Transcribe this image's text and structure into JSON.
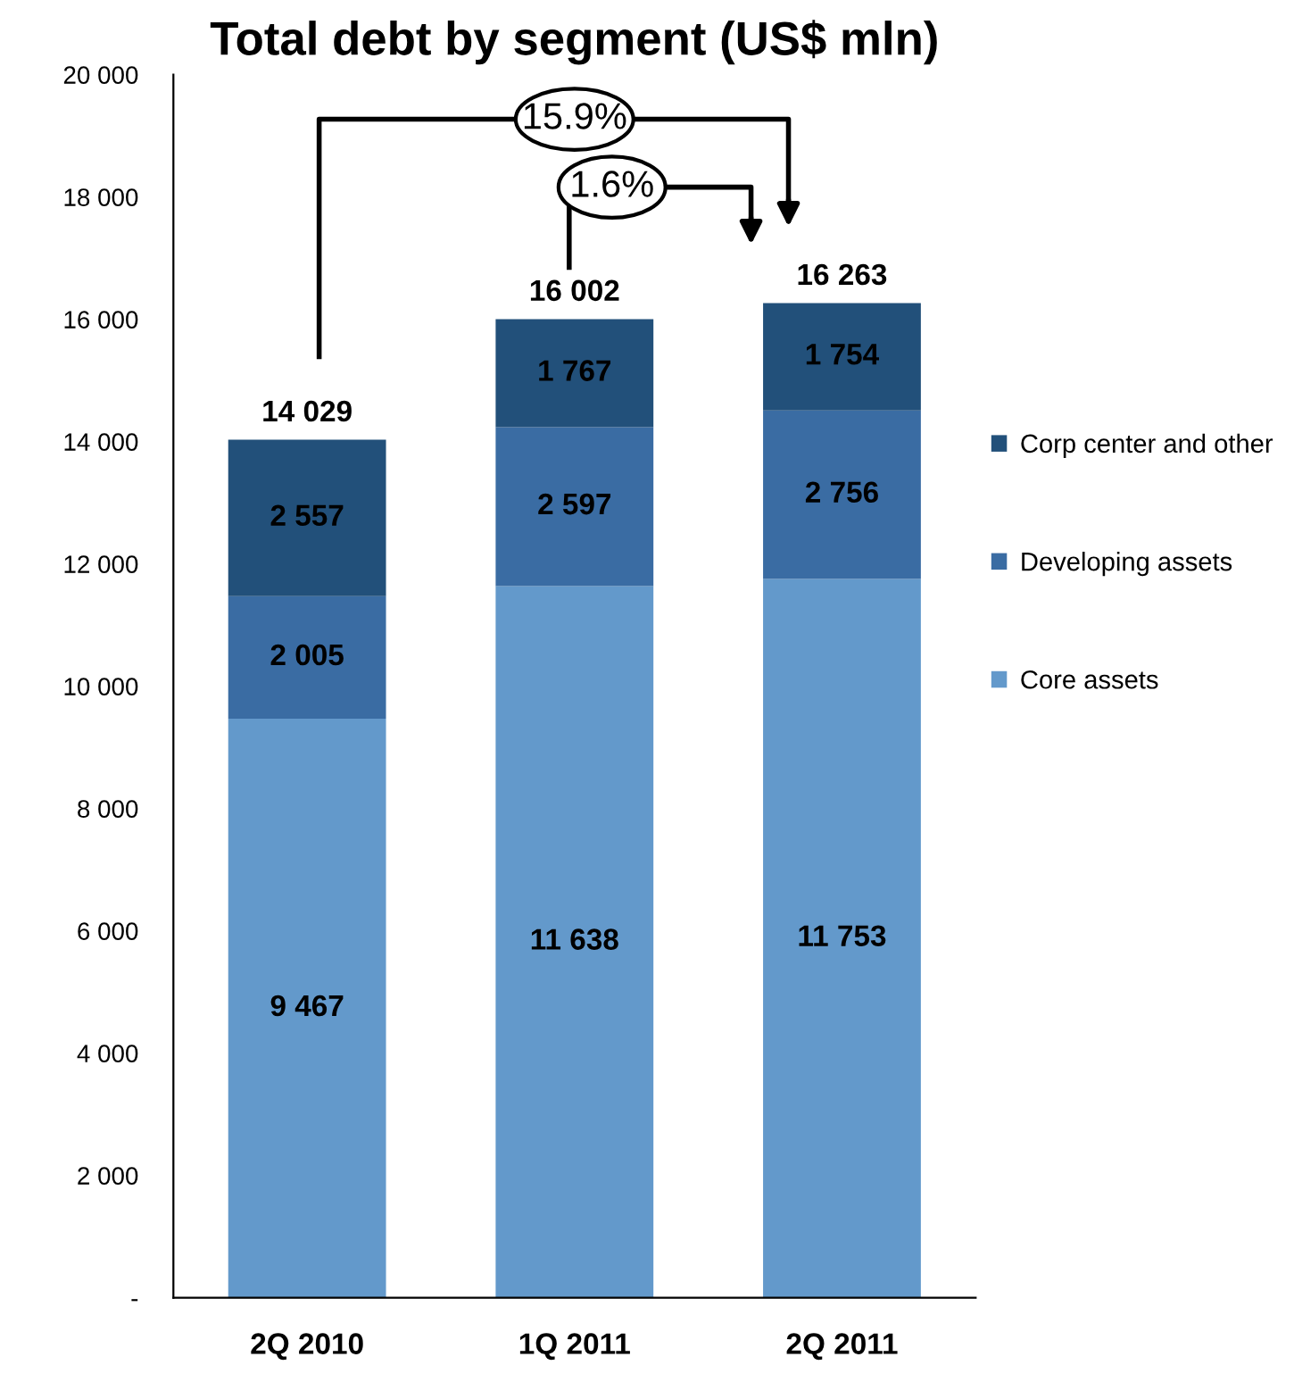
{
  "chart_data": {
    "type": "bar",
    "title": "Total debt by segment (US$ mln)",
    "categories": [
      "2Q 2010",
      "1Q 2011",
      "2Q 2011"
    ],
    "stacked": true,
    "series": [
      {
        "name": "Core assets",
        "color": "#6399cb",
        "values": [
          9467,
          11638,
          11753
        ],
        "value_labels": [
          "9 467",
          "11 638",
          "11 753"
        ]
      },
      {
        "name": "Developing assets",
        "color": "#3a6ca3",
        "values": [
          2005,
          2597,
          2756
        ],
        "value_labels": [
          "2 005",
          "2 597",
          "2 756"
        ]
      },
      {
        "name": "Corp center and other",
        "color": "#22507a",
        "values": [
          2557,
          1767,
          1754
        ],
        "value_labels": [
          "2 557",
          "1 767",
          "1 754"
        ]
      }
    ],
    "totals": [
      "14 029",
      "16 002",
      "16 263"
    ],
    "ylim": [
      0,
      20000
    ],
    "yticks": [
      {
        "value": 0,
        "label": "-"
      },
      {
        "value": 2000,
        "label": "2 000"
      },
      {
        "value": 4000,
        "label": "4 000"
      },
      {
        "value": 6000,
        "label": "6 000"
      },
      {
        "value": 8000,
        "label": "8 000"
      },
      {
        "value": 10000,
        "label": "10 000"
      },
      {
        "value": 12000,
        "label": "12 000"
      },
      {
        "value": 14000,
        "label": "14 000"
      },
      {
        "value": 16000,
        "label": "16 000"
      },
      {
        "value": 18000,
        "label": "18 000"
      },
      {
        "value": 20000,
        "label": "20 000"
      }
    ],
    "annotations": [
      "15.9%",
      "1.6%"
    ],
    "grid": false,
    "legend": "right"
  }
}
